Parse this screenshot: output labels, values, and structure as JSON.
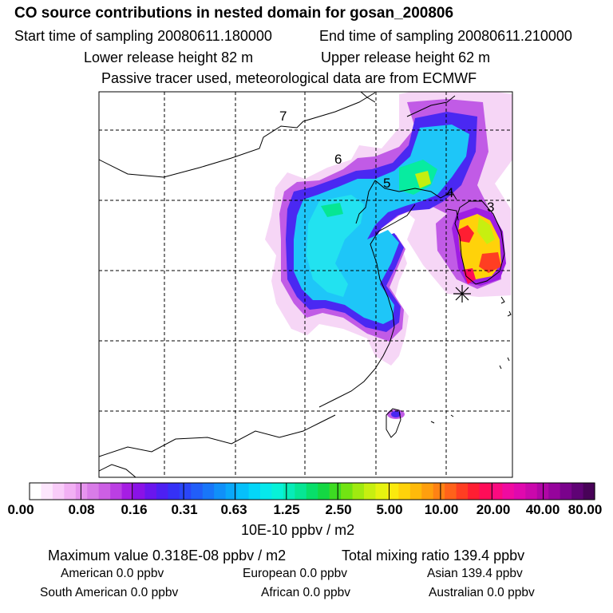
{
  "title": "CO  source contributions in nested domain for gosan_200806",
  "sampling": {
    "start": "Start time of sampling 20080611.180000",
    "end": "End time of sampling 20080611.210000"
  },
  "release": {
    "lower": "Lower release height   82 m",
    "upper": "Upper release height   62 m"
  },
  "note": "Passive tracer used, meteorological data are from ECMWF",
  "region_labels": [
    "7",
    "6",
    "5",
    "4",
    "3"
  ],
  "colorbar": {
    "ticks": [
      "0.00",
      "0.08",
      "0.16",
      "0.31",
      "0.63",
      "1.25",
      "2.50",
      "5.00",
      "10.00",
      "20.00",
      "40.00",
      "80.00"
    ],
    "unit": "10E-10 ppbv / m2",
    "colors": [
      "#ffffff",
      "#fde6fd",
      "#f9ccf9",
      "#f2b0f4",
      "#e694ee",
      "#d97ce8",
      "#cc5fe4",
      "#bb3fe3",
      "#a61de3",
      "#8a12e7",
      "#6a16ee",
      "#4d20f2",
      "#3531f6",
      "#2a46f8",
      "#215ef8",
      "#1876f9",
      "#1090f9",
      "#0aa8fa",
      "#06c0fa",
      "#04d6f8",
      "#06e8ec",
      "#07f2d8",
      "#07ecb8",
      "#06e694",
      "#08df6a",
      "#14d843",
      "#3ddc22",
      "#72e412",
      "#a0ea10",
      "#c7ef10",
      "#e6f210",
      "#fbe90e",
      "#ffd20a",
      "#ffba0a",
      "#ff9f0e",
      "#ff8214",
      "#ff621a",
      "#ff3e22",
      "#ff1e32",
      "#ff0c58",
      "#fb0a80",
      "#f00aa0",
      "#e008ae",
      "#ca08ac",
      "#b006a6",
      "#96049c",
      "#7a028c",
      "#5f0275",
      "#480258"
    ]
  },
  "footer": {
    "max_value": "Maximum value  0.318E-08 ppbv / m2",
    "total_mixing": "Total mixing ratio      139.4 ppbv",
    "american": "American         0.0 ppbv",
    "european": "European        0.0 ppbv",
    "asian": "Asian      139.4 ppbv",
    "south_american": "South American        0.0 ppbv",
    "african": "African        0.0 ppbv",
    "australian": "Australian        0.0 ppbv"
  }
}
